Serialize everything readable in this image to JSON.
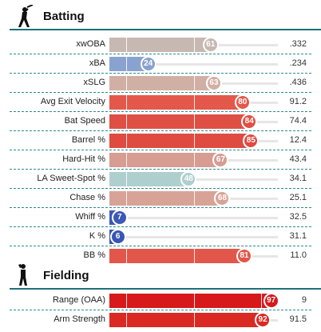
{
  "sections": [
    {
      "title": "Batting",
      "icon": "batter-silhouette-icon",
      "rows": [
        {
          "label": "xwOBA",
          "percentile": 61,
          "value": ".332",
          "color": "#c8b8b2"
        },
        {
          "label": "xBA",
          "percentile": 24,
          "value": ".234",
          "color": "#8aa2cf"
        },
        {
          "label": "xSLG",
          "percentile": 63,
          "value": ".436",
          "color": "#d0b0a4"
        },
        {
          "label": "Avg Exit Velocity",
          "percentile": 80,
          "value": "91.2",
          "color": "#e4584b"
        },
        {
          "label": "Bat Speed",
          "percentile": 84,
          "value": "74.4",
          "color": "#e04f44"
        },
        {
          "label": "Barrel %",
          "percentile": 85,
          "value": "12.4",
          "color": "#df4b40"
        },
        {
          "label": "Hard-Hit %",
          "percentile": 67,
          "value": "43.4",
          "color": "#d79c92"
        },
        {
          "label": "LA Sweet-Spot %",
          "percentile": 48,
          "value": "34.1",
          "color": "#afcfcf"
        },
        {
          "label": "Chase %",
          "percentile": 68,
          "value": "25.1",
          "color": "#d8a397"
        },
        {
          "label": "Whiff %",
          "percentile": 7,
          "value": "32.5",
          "color": "#3b59b5"
        },
        {
          "label": "K %",
          "percentile": 6,
          "value": "31.1",
          "color": "#3756b3"
        },
        {
          "label": "BB %",
          "percentile": 81,
          "value": "11.0",
          "color": "#e2574a"
        }
      ]
    },
    {
      "title": "Fielding",
      "icon": "fielder-silhouette-icon",
      "rows": [
        {
          "label": "Range (OAA)",
          "percentile": 97,
          "value": "9",
          "color": "#d7191c"
        },
        {
          "label": "Arm Strength",
          "percentile": 92,
          "value": "91.5",
          "color": "#da2a23"
        }
      ]
    }
  ]
}
